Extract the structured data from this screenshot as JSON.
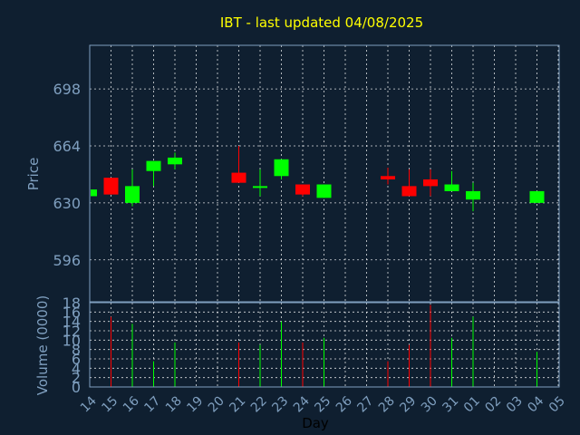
{
  "chart_data": {
    "type": "candlestick",
    "title": "IBT - last updated 04/08/2025",
    "xlabel": "Day",
    "price_panel": {
      "ylabel": "Price",
      "yticks": [
        596,
        630,
        664,
        698
      ],
      "ylim": [
        571,
        724
      ]
    },
    "volume_panel": {
      "ylabel": "Volume (0000)",
      "yticks": [
        0,
        2,
        4,
        6,
        8,
        10,
        12,
        14,
        16,
        18
      ],
      "ylim": [
        0,
        18
      ]
    },
    "x_ticks": [
      "14",
      "15",
      "16",
      "17",
      "18",
      "19",
      "20",
      "21",
      "22",
      "23",
      "24",
      "25",
      "26",
      "27",
      "28",
      "29",
      "30",
      "31",
      "01",
      "02",
      "03",
      "04",
      "05"
    ],
    "candles": [
      {
        "day": "14",
        "open": 634,
        "close": 638,
        "high": 638,
        "low": 634,
        "volume": 0
      },
      {
        "day": "15",
        "open": 645,
        "close": 635,
        "high": 645,
        "low": 635,
        "volume": 15
      },
      {
        "day": "16",
        "open": 630,
        "close": 640,
        "high": 650,
        "low": 628,
        "volume": 13.5
      },
      {
        "day": "17",
        "open": 649,
        "close": 655,
        "high": 655,
        "low": 640,
        "volume": 5.5
      },
      {
        "day": "18",
        "open": 653,
        "close": 657,
        "high": 660,
        "low": 650,
        "volume": 9.5
      },
      {
        "day": "21",
        "open": 648,
        "close": 642,
        "high": 664,
        "low": 642,
        "volume": 9.5
      },
      {
        "day": "22",
        "open": 639,
        "close": 640,
        "high": 650,
        "low": 634,
        "volume": 9
      },
      {
        "day": "23",
        "open": 646,
        "close": 656,
        "high": 656,
        "low": 644,
        "volume": 14
      },
      {
        "day": "24",
        "open": 641,
        "close": 635,
        "high": 641,
        "low": 634,
        "volume": 9.5
      },
      {
        "day": "25",
        "open": 633,
        "close": 641,
        "high": 641,
        "low": 633,
        "volume": 10.5
      },
      {
        "day": "28",
        "open": 646,
        "close": 644,
        "high": 651,
        "low": 641,
        "volume": 5.5
      },
      {
        "day": "29",
        "open": 640,
        "close": 634,
        "high": 650,
        "low": 634,
        "volume": 9
      },
      {
        "day": "30",
        "open": 644,
        "close": 640,
        "high": 650,
        "low": 634,
        "volume": 17.5
      },
      {
        "day": "31",
        "open": 637,
        "close": 641,
        "high": 649,
        "low": 637,
        "volume": 10.5
      },
      {
        "day": "01",
        "open": 632,
        "close": 637,
        "high": 642,
        "low": 625,
        "volume": 15
      },
      {
        "day": "04",
        "open": 630,
        "close": 637,
        "high": 637,
        "low": 630,
        "volume": 7.5
      }
    ]
  }
}
